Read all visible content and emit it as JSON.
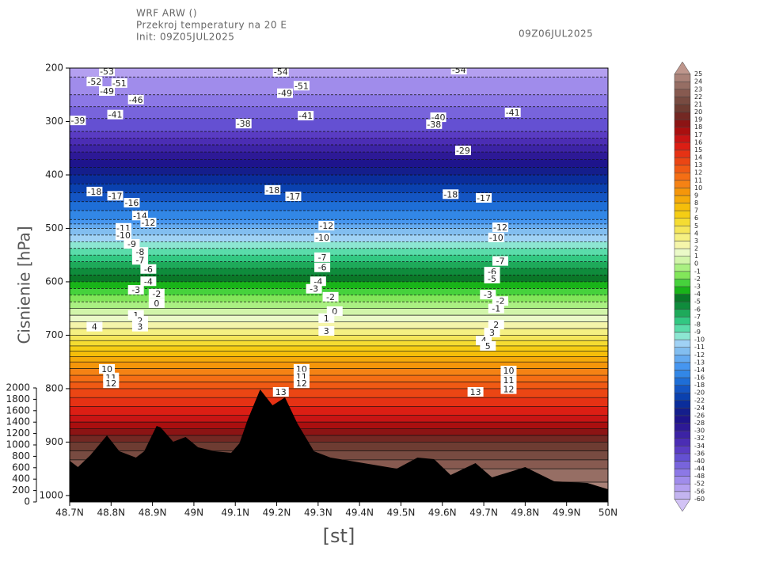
{
  "chart_data": {
    "type": "contour-section",
    "title": "WRF ARW ()",
    "subtitle": "Przekroj temperatury na 20 E",
    "init": "Init: 09Z05JUL2025",
    "valid": "09Z06JUL2025",
    "ylabel": "Cisnienie  [hPa]",
    "xlabel": "[st]",
    "xlim": [
      48.7,
      50
    ],
    "xticks": [
      {
        "value": 48.7,
        "label": "48.7N"
      },
      {
        "value": 48.8,
        "label": "48.8N"
      },
      {
        "value": 48.9,
        "label": "48.9N"
      },
      {
        "value": 49,
        "label": "49N"
      },
      {
        "value": 49.1,
        "label": "49.1N"
      },
      {
        "value": 49.2,
        "label": "49.2N"
      },
      {
        "value": 49.3,
        "label": "49.3N"
      },
      {
        "value": 49.4,
        "label": "49.4N"
      },
      {
        "value": 49.5,
        "label": "49.5N"
      },
      {
        "value": 49.6,
        "label": "49.6N"
      },
      {
        "value": 49.7,
        "label": "49.7N"
      },
      {
        "value": 49.8,
        "label": "49.8N"
      },
      {
        "value": 49.9,
        "label": "49.9N"
      },
      {
        "value": 50,
        "label": "50N"
      }
    ],
    "ylim": [
      1012,
      200
    ],
    "yticks": [
      200,
      300,
      400,
      500,
      600,
      700,
      800,
      900,
      1000
    ],
    "y2lim": [
      0,
      2000
    ],
    "y2ticks": [
      0,
      200,
      400,
      600,
      800,
      1000,
      1200,
      1400,
      1600,
      1800,
      2000
    ],
    "temperature_profile": {
      "pressure": [
        200,
        250,
        300,
        350,
        400,
        450,
        500,
        550,
        600,
        650,
        700,
        750,
        800,
        850,
        900,
        950,
        1000
      ],
      "values": [
        -54,
        -48,
        -39,
        -31,
        -24,
        -18,
        -12,
        -8,
        -4,
        0,
        4,
        9,
        13,
        16,
        20,
        23,
        25
      ]
    },
    "terrain": {
      "axis": "y2",
      "color": "#000000",
      "x": [
        48.7,
        48.72,
        48.75,
        48.79,
        48.82,
        48.86,
        48.88,
        48.91,
        48.92,
        48.95,
        48.98,
        49.01,
        49.05,
        49.09,
        49.11,
        49.13,
        49.16,
        49.19,
        49.22,
        49.25,
        49.29,
        49.33,
        49.41,
        49.49,
        49.54,
        49.58,
        49.62,
        49.68,
        49.72,
        49.77,
        49.8,
        49.87,
        49.95,
        50
      ],
      "values": [
        722,
        611,
        819,
        1167,
        889,
        778,
        889,
        1333,
        1306,
        1056,
        1139,
        958,
        889,
        861,
        1028,
        1444,
        1972,
        1694,
        1833,
        1375,
        889,
        778,
        681,
        583,
        778,
        750,
        472,
        681,
        431,
        542,
        611,
        361,
        333,
        222
      ]
    },
    "levels": [
      -60,
      -56,
      -52,
      -48,
      -44,
      -40,
      -36,
      -34,
      -32,
      -30,
      -28,
      -26,
      -24,
      -22,
      -20,
      -18,
      -16,
      -14,
      -13,
      -12,
      -11,
      -10,
      -9,
      -8,
      -7,
      -6,
      -5,
      -4,
      -3,
      -2,
      -1,
      0,
      1,
      2,
      3,
      4,
      5,
      6,
      7,
      8,
      9,
      10,
      11,
      12,
      13,
      14,
      15,
      16,
      17,
      18,
      19,
      20,
      21,
      22,
      23,
      24,
      25
    ],
    "colors": [
      "#d2c3f5",
      "#c3b4f0",
      "#b4a0f0",
      "#a08ceb",
      "#8c78e6",
      "#7864dc",
      "#6450d2",
      "#5a3cc3",
      "#4b2db4",
      "#3c23a5",
      "#2d1996",
      "#1e148c",
      "#141e8c",
      "#0a2d9b",
      "#0a41af",
      "#1455c3",
      "#1e6ed7",
      "#3287e6",
      "#4696f0",
      "#64aaf0",
      "#82bef0",
      "#a0d2f5",
      "#8ce6d2",
      "#5adcaa",
      "#32c882",
      "#1eaa5a",
      "#0f8c3c",
      "#0a7828",
      "#19b419",
      "#46d23c",
      "#82e65a",
      "#aaf082",
      "#d2f5aa",
      "#ebfac8",
      "#f5f5aa",
      "#f5f082",
      "#f5e65a",
      "#f5dc32",
      "#f5cd14",
      "#f5be0a",
      "#f5aa0a",
      "#f5960a",
      "#f58214",
      "#f56e14",
      "#f05a14",
      "#eb4614",
      "#e63214",
      "#dc1e14",
      "#c81414",
      "#aa0f0f",
      "#8c1414",
      "#732823",
      "#6e3c32",
      "#784b41",
      "#875a50",
      "#966e64",
      "#aa8278",
      "#be968c"
    ],
    "contour_labels": {
      "x": [
        48.79,
        48.76,
        48.82,
        48.79,
        48.86,
        48.81,
        48.72,
        48.76,
        48.81,
        48.85,
        48.87,
        48.89,
        48.83,
        48.83,
        48.85,
        48.87,
        48.87,
        48.89,
        48.89,
        48.86,
        48.91,
        48.91,
        48.86,
        48.87,
        48.87,
        48.76,
        48.79,
        48.8,
        48.8,
        49.21,
        49.21,
        49.26,
        49.22,
        49.27,
        49.12,
        49.19,
        49.24,
        49.32,
        49.31,
        49.31,
        49.31,
        49.3,
        49.29,
        49.33,
        49.34,
        49.32,
        49.32,
        49.26,
        49.26,
        49.26,
        49.59,
        49.58,
        49.65,
        49.62,
        49.7,
        49.74,
        49.73,
        49.74,
        49.72,
        49.72,
        49.71,
        49.74,
        49.73,
        49.73,
        49.72,
        49.7,
        49.71,
        49.76,
        49.76,
        49.76,
        49.68,
        49.77,
        49.64
      ],
      "pressure": [
        206,
        225,
        228,
        243,
        259,
        287,
        298,
        431,
        439,
        452,
        476,
        489,
        499,
        513,
        529,
        544,
        559,
        576,
        599,
        615,
        622,
        640,
        662,
        673,
        684,
        684,
        763,
        779,
        790,
        806,
        207,
        233,
        247,
        289,
        304,
        428,
        440,
        495,
        517,
        554,
        573,
        599,
        613,
        628,
        655,
        668,
        692,
        763,
        777,
        790,
        292,
        305,
        354,
        436,
        443,
        498,
        517,
        561,
        581,
        594,
        624,
        636,
        650,
        680,
        695,
        710,
        720,
        766,
        784,
        801,
        806,
        283,
        203
      ],
      "values": [
        -53,
        -52,
        -51,
        -49,
        -46,
        -41,
        -39,
        -18,
        -17,
        -16,
        -14,
        -12,
        -11,
        -10,
        -9,
        -8,
        -7,
        -6,
        -4,
        -3,
        -2,
        0,
        1,
        2,
        3,
        4,
        10,
        11,
        12,
        13,
        -54,
        -51,
        -49,
        -41,
        -38,
        -18,
        -17,
        -12,
        -10,
        -7,
        -6,
        -4,
        -3,
        -2,
        0,
        1,
        3,
        10,
        11,
        12,
        -40,
        -38,
        -29,
        -18,
        -17,
        -12,
        -10,
        -7,
        -6,
        -5,
        -3,
        -2,
        -1,
        2,
        3,
        4,
        5,
        10,
        11,
        12,
        13,
        -41,
        -54
      ]
    }
  }
}
